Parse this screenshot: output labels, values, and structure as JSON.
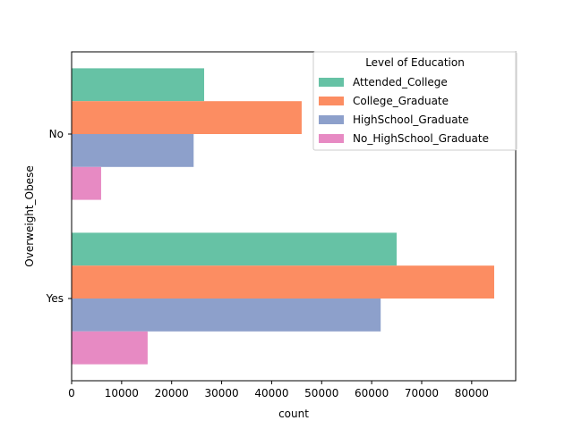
{
  "chart_data": {
    "type": "bar",
    "orientation": "horizontal",
    "categories": [
      "No",
      "Yes"
    ],
    "series": [
      {
        "name": "Attended_College",
        "values": [
          26500,
          65000
        ],
        "color": "#66c2a5"
      },
      {
        "name": "College_Graduate",
        "values": [
          46000,
          84500
        ],
        "color": "#fc8d62"
      },
      {
        "name": "HighSchool_Graduate",
        "values": [
          24400,
          61800
        ],
        "color": "#8da0cb"
      },
      {
        "name": "No_HighSchool_Graduate",
        "values": [
          5900,
          15200
        ],
        "color": "#e78ac3"
      }
    ],
    "xlabel": "count",
    "ylabel": "Overweight_Obese",
    "xlim": [
      0,
      88800
    ],
    "xticks": [
      0,
      10000,
      20000,
      30000,
      40000,
      50000,
      60000,
      70000,
      80000
    ],
    "legend_title": "Level of Education",
    "legend_position": "top-right",
    "grid": false
  }
}
